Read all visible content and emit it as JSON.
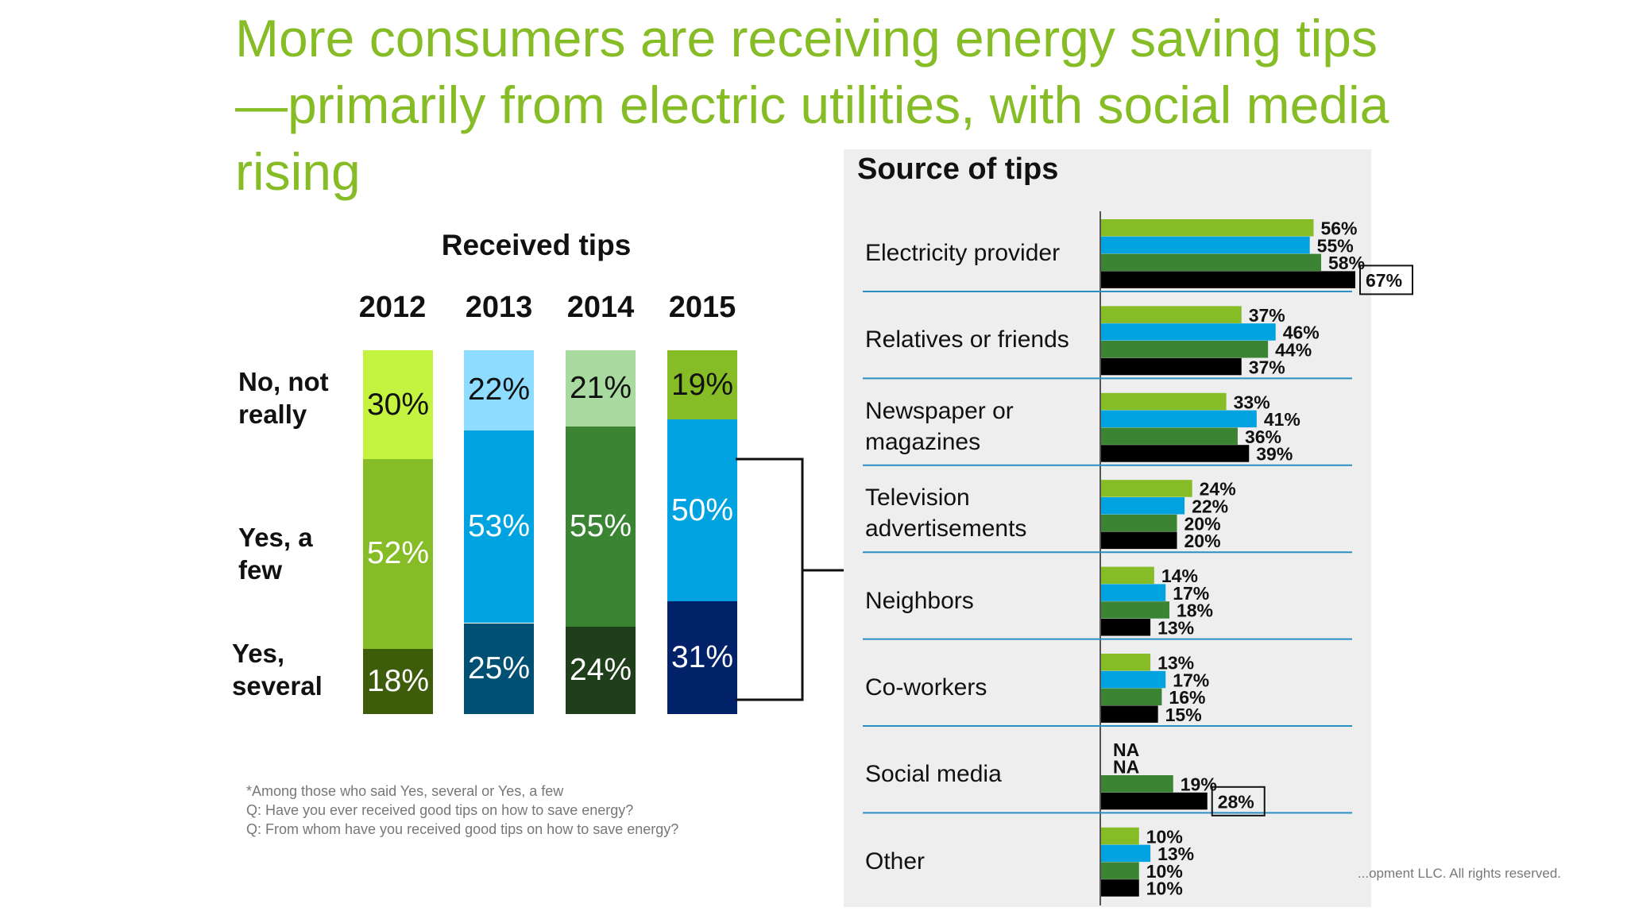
{
  "title": "More consumers are receiving energy saving tips—primarily from electric utilities, with social media rising",
  "received": {
    "title": "Received tips",
    "rows": [
      "No, not really",
      "Yes, a few",
      "Yes, several"
    ]
  },
  "footnotes": [
    "*Among those who said Yes, several or Yes, a few",
    "Q: Have you ever received good tips on how to save energy?",
    "Q: From whom have you received good tips on how to save energy?"
  ],
  "copyright": "...opment LLC. All rights reserved.",
  "chart_data": [
    {
      "type": "bar",
      "stacked": true,
      "title": "Received tips",
      "categories": [
        "2012",
        "2013",
        "2014",
        "2015"
      ],
      "series": [
        {
          "name": "Yes, several",
          "values": [
            18,
            25,
            24,
            31
          ],
          "labels": [
            "18%",
            "25%",
            "24%",
            "31%"
          ],
          "colors": [
            "#3d5d0b",
            "#005073",
            "#1f3e1a",
            "#012169"
          ]
        },
        {
          "name": "Yes, a few",
          "values": [
            52,
            53,
            55,
            50
          ],
          "labels": [
            "52%",
            "53%",
            "55%",
            "50%"
          ],
          "colors": [
            "#86bc25",
            "#00a3e0",
            "#3a8434",
            "#00a3e0"
          ]
        },
        {
          "name": "No, not really",
          "values": [
            30,
            22,
            21,
            19
          ],
          "labels": [
            "30%",
            "22%",
            "21%",
            "19%"
          ],
          "colors": [
            "#c4f440",
            "#8edcff",
            "#a9dba0",
            "#86bc25"
          ]
        }
      ],
      "label_text_colors": [
        [
          "#ffffff",
          "#ffffff",
          "#111111"
        ],
        [
          "#ffffff",
          "#ffffff",
          "#111111"
        ],
        [
          "#ffffff",
          "#ffffff",
          "#111111"
        ],
        [
          "#ffffff",
          "#ffffff",
          "#111111"
        ]
      ]
    },
    {
      "type": "bar",
      "orientation": "horizontal",
      "title": "Source of tips",
      "categories": [
        "Electricity provider",
        "Relatives or friends",
        "Newspaper or magazines",
        "Television advertisements",
        "Neighbors",
        "Co-workers",
        "Social media",
        "Other"
      ],
      "category_lines": [
        [
          "Electricity provider"
        ],
        [
          "Relatives or friends"
        ],
        [
          "Newspaper or",
          "magazines"
        ],
        [
          "Television",
          "advertisements"
        ],
        [
          "Neighbors"
        ],
        [
          "Co-workers"
        ],
        [
          "Social media"
        ],
        [
          "Other"
        ]
      ],
      "series": [
        {
          "values": [
            56,
            37,
            33,
            24,
            14,
            13,
            null,
            10
          ],
          "labels": [
            "56%",
            "37%",
            "33%",
            "24%",
            "14%",
            "13%",
            "NA",
            "10%"
          ],
          "color": "#86bc25"
        },
        {
          "values": [
            55,
            46,
            41,
            22,
            17,
            17,
            null,
            13
          ],
          "labels": [
            "55%",
            "46%",
            "41%",
            "22%",
            "17%",
            "17%",
            "NA",
            "13%"
          ],
          "color": "#00a3e0"
        },
        {
          "values": [
            58,
            44,
            36,
            20,
            18,
            16,
            19,
            10
          ],
          "labels": [
            "58%",
            "44%",
            "36%",
            "20%",
            "18%",
            "16%",
            "19%",
            "10%"
          ],
          "color": "#3a8434"
        },
        {
          "values": [
            67,
            37,
            39,
            20,
            13,
            15,
            28,
            10
          ],
          "labels": [
            "67%",
            "37%",
            "39%",
            "20%",
            "13%",
            "15%",
            "28%",
            "10%"
          ],
          "color": "#000000"
        }
      ],
      "highlighted": [
        "67%",
        "28%"
      ],
      "xlim": [
        0,
        70
      ]
    }
  ]
}
